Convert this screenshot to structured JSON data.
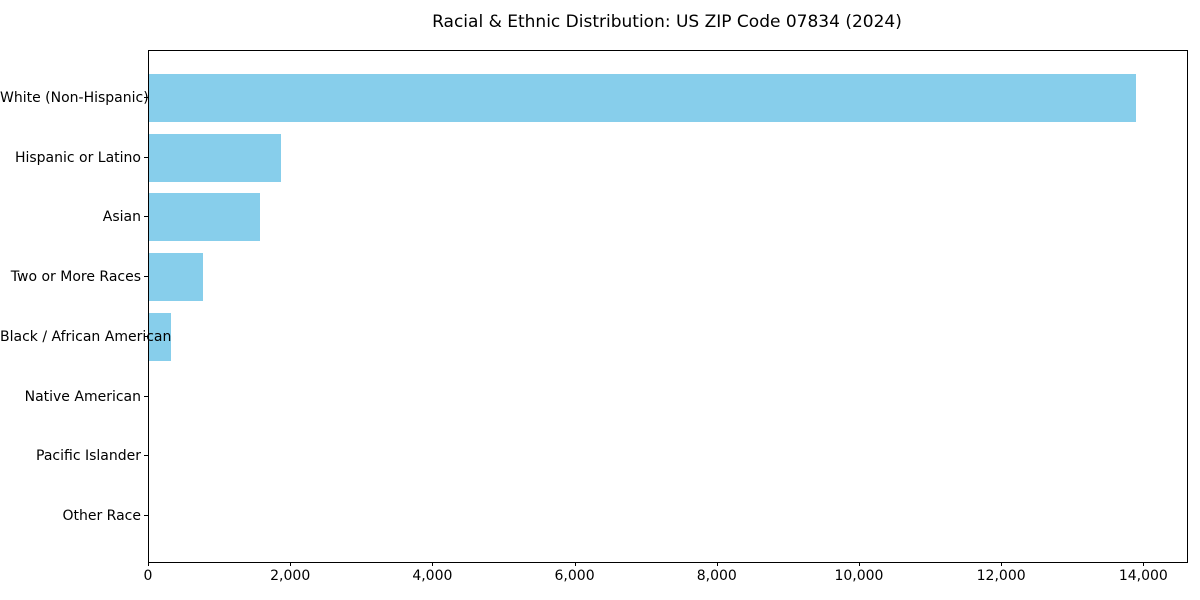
{
  "chart_data": {
    "type": "bar",
    "orientation": "horizontal",
    "title": "Racial & Ethnic Distribution: US ZIP Code 07834 (2024)",
    "categories": [
      "White (Non-Hispanic)",
      "Hispanic or Latino",
      "Asian",
      "Two or More Races",
      "Black / African American",
      "Native American",
      "Pacific Islander",
      "Other Race"
    ],
    "values": [
      13880,
      1860,
      1560,
      760,
      315,
      0,
      0,
      0
    ],
    "xlabel": "",
    "ylabel": "",
    "xlim": [
      0,
      14600
    ],
    "x_ticks": [
      {
        "value": 0,
        "label": "0"
      },
      {
        "value": 2000,
        "label": "2,000"
      },
      {
        "value": 4000,
        "label": "4,000"
      },
      {
        "value": 6000,
        "label": "6,000"
      },
      {
        "value": 8000,
        "label": "8,000"
      },
      {
        "value": 10000,
        "label": "10,000"
      },
      {
        "value": 12000,
        "label": "12,000"
      },
      {
        "value": 14000,
        "label": "14,000"
      }
    ],
    "bar_color": "#87ceeb",
    "axis_color": "#000000",
    "background_color": "#ffffff",
    "grid": false,
    "legend": "none"
  }
}
